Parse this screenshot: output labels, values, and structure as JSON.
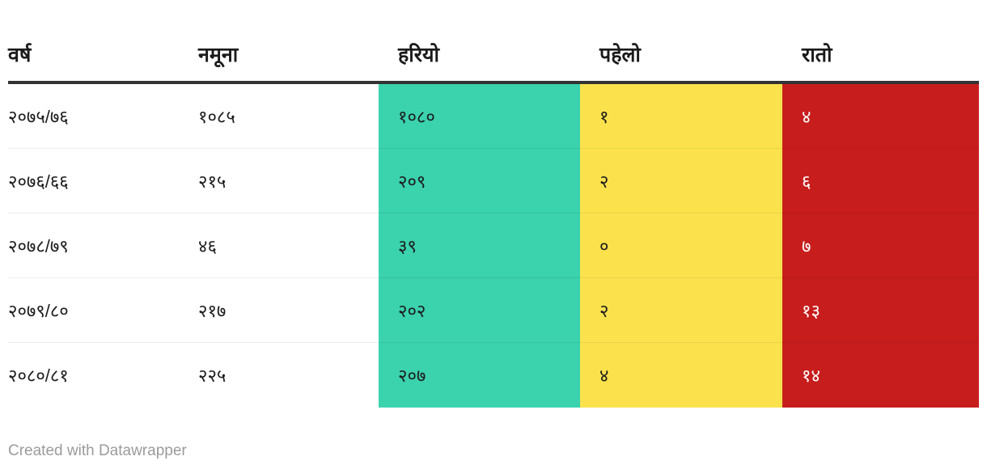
{
  "chart_data": {
    "type": "table",
    "columns": [
      "वर्ष",
      "नमूना",
      "हरियो",
      "पहेलो",
      "रातो"
    ],
    "rows": [
      [
        "२०७५/७६",
        "१०८५",
        "१०८०",
        "१",
        "४"
      ],
      [
        "२०७६/६६",
        "२१५",
        "२०९",
        "२",
        "६"
      ],
      [
        "२०७८/७९",
        "४६",
        "३९",
        "०",
        "७"
      ],
      [
        "२०७९/८०",
        "२१७",
        "२०२",
        "२",
        "१३"
      ],
      [
        "२०८०/८१",
        "२२५",
        "२०७",
        "४",
        "१४"
      ]
    ],
    "rows_latin": [
      [
        "2075/76",
        1085,
        1080,
        1,
        4
      ],
      [
        "2076/66",
        215,
        209,
        2,
        6
      ],
      [
        "2078/79",
        46,
        39,
        0,
        7
      ],
      [
        "2079/80",
        217,
        202,
        2,
        13
      ],
      [
        "2080/81",
        225,
        207,
        4,
        14
      ]
    ],
    "column_backgrounds": [
      "none",
      "none",
      "#3bd2ae",
      "#fbe24d",
      "#c81d1d"
    ],
    "legend_position": "none",
    "grid": "row-separators"
  },
  "colors": {
    "green": "#3bd2ae",
    "yellow": "#fbe24d",
    "red": "#c81d1d",
    "rule": "#333333",
    "footer_text": "#9b9b9b"
  },
  "footer": {
    "credit": "Created with Datawrapper"
  }
}
